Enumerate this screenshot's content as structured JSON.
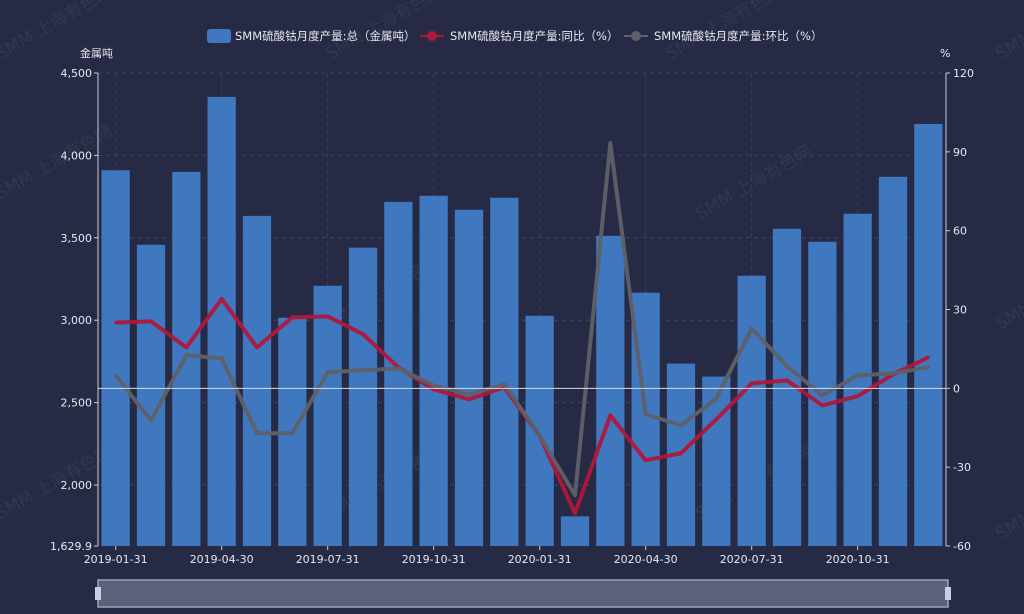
{
  "watermark": "SMM 上海有色网",
  "chart_data": {
    "type": "bar",
    "categories": [
      "2019-01-31",
      "2019-02-28",
      "2019-03-31",
      "2019-04-30",
      "2019-05-31",
      "2019-06-30",
      "2019-07-31",
      "2019-08-31",
      "2019-09-30",
      "2019-10-31",
      "2019-11-30",
      "2019-12-31",
      "2020-01-31",
      "2020-02-29",
      "2020-03-31",
      "2020-04-30",
      "2020-05-31",
      "2020-06-30",
      "2020-07-31",
      "2020-08-31",
      "2020-09-30",
      "2020-10-31",
      "2020-11-30",
      "2020-12-31"
    ],
    "x_tick_labels": [
      "2019-01-31",
      "2019-04-30",
      "2019-07-31",
      "2019-10-31",
      "2020-01-31",
      "2020-04-30",
      "2020-07-31",
      "2020-10-31"
    ],
    "y_left": {
      "label": "金属吨",
      "range": [
        1629.9,
        4500
      ],
      "ticks": [
        "1,629.9",
        "2,000",
        "2,500",
        "3,000",
        "3,500",
        "4,000",
        "4,500"
      ],
      "tick_values": [
        1629.9,
        2000,
        2500,
        3000,
        3500,
        4000,
        4500
      ]
    },
    "y_right": {
      "label": "%",
      "range": [
        -60,
        120
      ],
      "ticks": [
        "-60",
        "-30",
        "0",
        "30",
        "60",
        "90",
        "120"
      ],
      "tick_values": [
        -60,
        -30,
        0,
        30,
        60,
        90,
        120
      ]
    },
    "grid": true,
    "legend_position": "top",
    "series": [
      {
        "name": "SMM硫酸钴月度产量:总（金属吨）",
        "type": "bar",
        "axis": "left",
        "color": "#3f78bf",
        "values": [
          3910,
          3458,
          3900,
          4355,
          3633,
          3015,
          3209,
          3440,
          3718,
          3755,
          3670,
          3743,
          3027,
          1810,
          3512,
          3167,
          2737,
          2658,
          3270,
          3555,
          3476,
          3646,
          3870,
          4191
        ]
      },
      {
        "name": "SMM硫酸钴月度产量:同比（%）",
        "type": "line",
        "axis": "right",
        "color": "#b0173a",
        "values": [
          25,
          25.5,
          15.6,
          34,
          15.6,
          27,
          27.4,
          20.6,
          8,
          -0.4,
          -4.2,
          0.4,
          -18,
          -47.6,
          -10.3,
          -27.4,
          -24.7,
          -11.8,
          1.9,
          3,
          -6.5,
          -3,
          5.3,
          11.8
        ]
      },
      {
        "name": "SMM硫酸钴月度产量:环比（%）",
        "type": "line",
        "axis": "right",
        "color": "#5f6067",
        "values": [
          5,
          -12.2,
          12.6,
          11.4,
          -17.1,
          -17.1,
          6.1,
          6.9,
          7.6,
          1.1,
          -2.3,
          1.5,
          -18,
          -40.7,
          93.3,
          -9.9,
          -14.1,
          -3.8,
          22.8,
          8.4,
          -2.7,
          4.9,
          5.7,
          8
        ]
      }
    ]
  }
}
